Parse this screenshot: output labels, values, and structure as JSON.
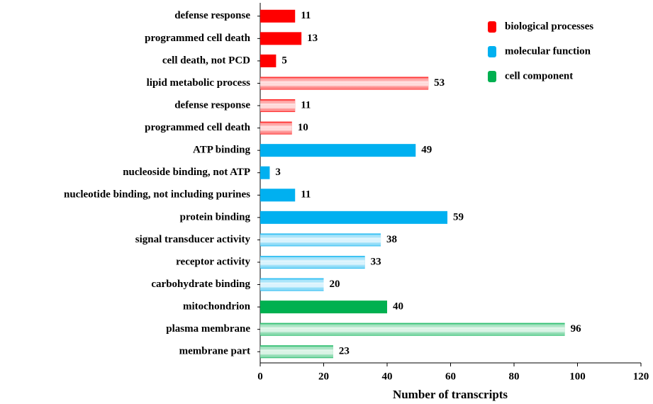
{
  "chart_data": {
    "type": "bar",
    "orientation": "horizontal",
    "x_label": "Number  of transcripts",
    "categories": [
      "defense response",
      "programmed cell death",
      "cell death, not PCD",
      "lipid metabolic process",
      "defense response",
      "programmed cell death",
      "ATP binding",
      "nucleoside binding, not ATP",
      "nucleotide binding, not including purines",
      "protein binding",
      "signal transducer activity",
      "receptor activity",
      "carbohydrate binding",
      "mitochondrion",
      "plasma membrane",
      "membrane part"
    ],
    "striped": [
      false,
      false,
      false,
      true,
      true,
      true,
      false,
      false,
      false,
      false,
      true,
      true,
      true,
      false,
      true,
      true
    ],
    "series": [
      {
        "name": "biological processes",
        "color": "#ff0000",
        "values": [
          11,
          13,
          5,
          53,
          11,
          10,
          null,
          null,
          null,
          null,
          null,
          null,
          null,
          null,
          null,
          null
        ]
      },
      {
        "name": "molecular function",
        "color": "#00b0f0",
        "values": [
          null,
          null,
          null,
          null,
          null,
          null,
          49,
          3,
          11,
          59,
          38,
          33,
          20,
          null,
          null,
          null
        ]
      },
      {
        "name": "cell component",
        "color": "#00b050",
        "values": [
          null,
          null,
          null,
          null,
          null,
          null,
          null,
          null,
          null,
          null,
          null,
          null,
          null,
          40,
          96,
          23
        ]
      }
    ],
    "xlim": [
      0,
      120
    ],
    "xticks": [
      0,
      20,
      40,
      60,
      80,
      100,
      120
    ],
    "legend": "top-right"
  }
}
